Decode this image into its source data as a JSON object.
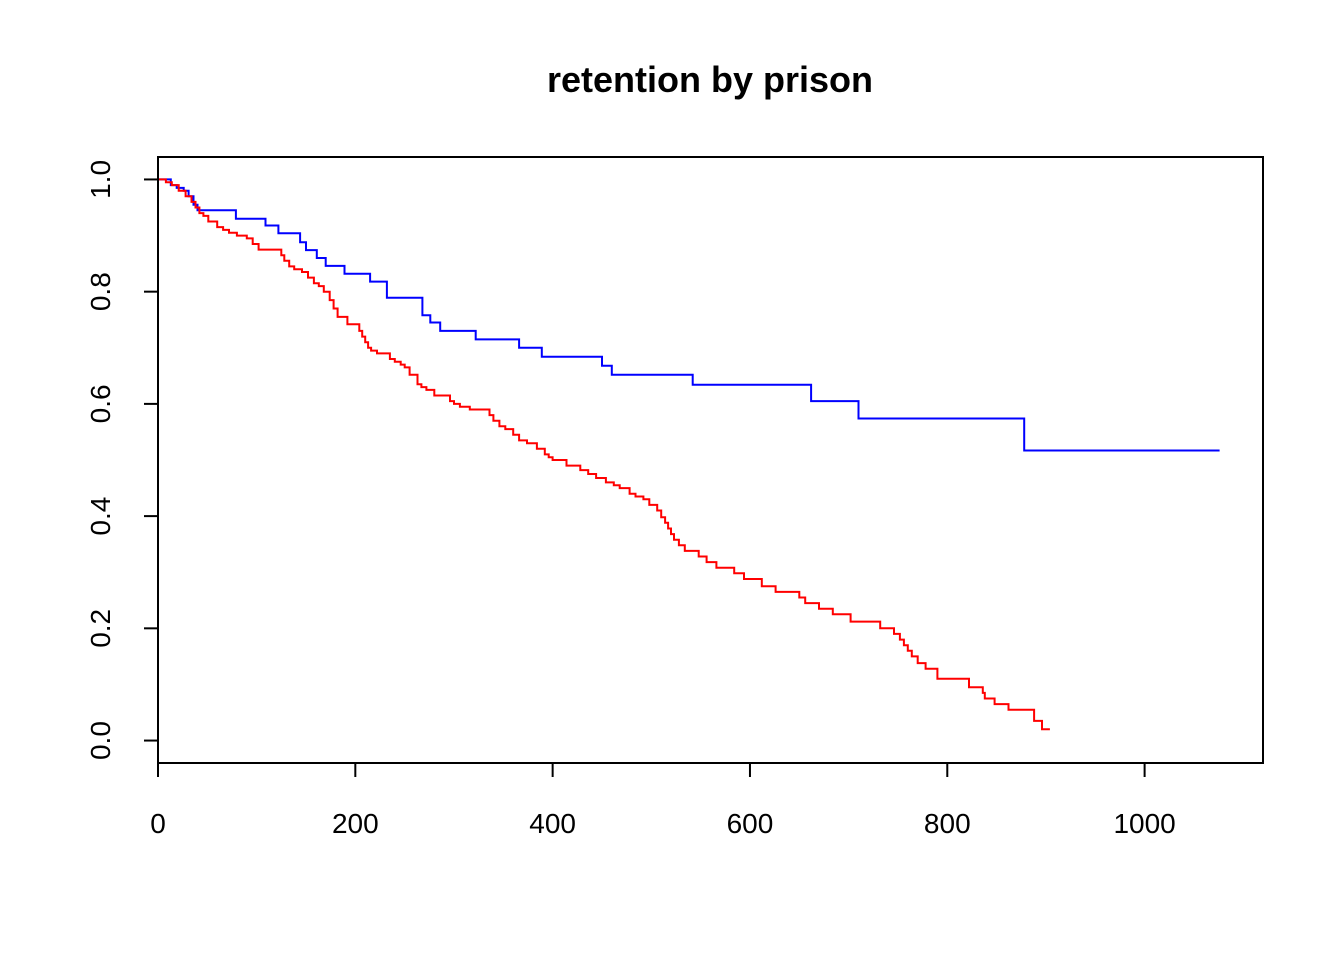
{
  "chart_data": {
    "type": "line",
    "title": "retention by prison",
    "xlabel": "",
    "ylabel": "",
    "xlim": [
      0,
      1120
    ],
    "ylim": [
      -0.04,
      1.04
    ],
    "x_ticks": [
      0,
      200,
      400,
      600,
      800,
      1000
    ],
    "y_ticks": [
      0.0,
      0.2,
      0.4,
      0.6,
      0.8,
      1.0
    ],
    "x_tick_labels": [
      "0",
      "200",
      "400",
      "600",
      "800",
      "1000"
    ],
    "y_tick_labels": [
      "0.0",
      "0.2",
      "0.4",
      "0.6",
      "0.8",
      "1.0"
    ],
    "grid": false,
    "legend": "none",
    "series": [
      {
        "color": "#0000ff",
        "step": true,
        "x": [
          0,
          13,
          19,
          26,
          31,
          36,
          40,
          79,
          109,
          122,
          144,
          150,
          161,
          170,
          189,
          215,
          232,
          268,
          276,
          286,
          322,
          366,
          389,
          450,
          460,
          542,
          662,
          710,
          878,
          1076
        ],
        "y": [
          1.0,
          0.99,
          0.985,
          0.98,
          0.97,
          0.955,
          0.945,
          0.93,
          0.918,
          0.904,
          0.888,
          0.874,
          0.86,
          0.846,
          0.832,
          0.818,
          0.789,
          0.758,
          0.745,
          0.73,
          0.715,
          0.7,
          0.684,
          0.668,
          0.652,
          0.634,
          0.605,
          0.574,
          0.517,
          0.517
        ]
      },
      {
        "color": "#ff0000",
        "step": true,
        "x": [
          0,
          8,
          14,
          21,
          28,
          34,
          38,
          42,
          46,
          51,
          60,
          66,
          72,
          80,
          90,
          96,
          102,
          125,
          128,
          133,
          138,
          146,
          152,
          158,
          163,
          168,
          174,
          178,
          182,
          192,
          204,
          207,
          210,
          213,
          216,
          222,
          235,
          240,
          246,
          250,
          255,
          263,
          267,
          272,
          280,
          296,
          300,
          306,
          316,
          336,
          340,
          346,
          352,
          360,
          366,
          374,
          384,
          392,
          396,
          400,
          414,
          428,
          436,
          444,
          454,
          462,
          468,
          478,
          484,
          492,
          498,
          506,
          510,
          514,
          517,
          520,
          523,
          528,
          534,
          548,
          556,
          566,
          584,
          594,
          612,
          626,
          650,
          656,
          670,
          684,
          702,
          732,
          746,
          752,
          756,
          760,
          764,
          770,
          778,
          790,
          822,
          836,
          838,
          848,
          862,
          888,
          896,
          904
        ],
        "y": [
          1.0,
          0.995,
          0.99,
          0.98,
          0.97,
          0.96,
          0.95,
          0.94,
          0.935,
          0.925,
          0.915,
          0.91,
          0.905,
          0.9,
          0.895,
          0.885,
          0.875,
          0.865,
          0.855,
          0.845,
          0.84,
          0.835,
          0.825,
          0.815,
          0.81,
          0.8,
          0.785,
          0.77,
          0.755,
          0.742,
          0.73,
          0.72,
          0.71,
          0.7,
          0.695,
          0.69,
          0.68,
          0.675,
          0.67,
          0.665,
          0.652,
          0.635,
          0.63,
          0.625,
          0.615,
          0.605,
          0.6,
          0.595,
          0.59,
          0.58,
          0.57,
          0.56,
          0.555,
          0.545,
          0.535,
          0.53,
          0.52,
          0.51,
          0.505,
          0.5,
          0.49,
          0.482,
          0.475,
          0.468,
          0.46,
          0.455,
          0.45,
          0.44,
          0.435,
          0.43,
          0.42,
          0.41,
          0.398,
          0.388,
          0.378,
          0.368,
          0.358,
          0.348,
          0.338,
          0.328,
          0.318,
          0.308,
          0.298,
          0.288,
          0.275,
          0.265,
          0.255,
          0.245,
          0.235,
          0.225,
          0.212,
          0.2,
          0.19,
          0.18,
          0.17,
          0.16,
          0.15,
          0.138,
          0.128,
          0.11,
          0.095,
          0.085,
          0.075,
          0.065,
          0.055,
          0.035,
          0.02,
          0.02
        ]
      }
    ]
  }
}
